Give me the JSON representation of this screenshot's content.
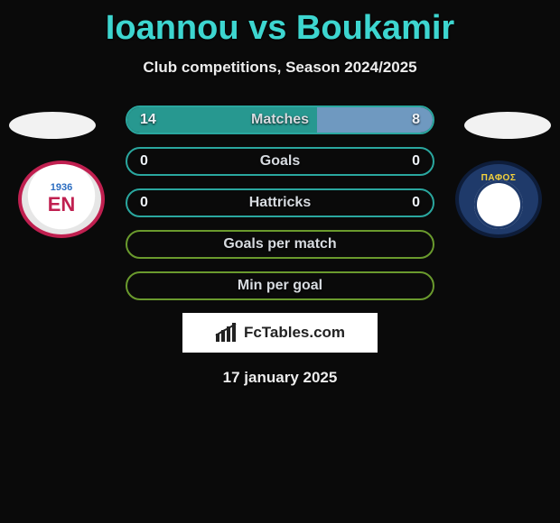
{
  "title": "Ioannou vs Boukamir",
  "subtitle": "Club competitions, Season 2024/2025",
  "date": "17 january 2025",
  "watermark": "FcTables.com",
  "colors": {
    "row_border_teal": "#2aa79f",
    "row_border_green": "#6a9a2d",
    "fill_left": "#2aa79f",
    "fill_right": "#7aa9d4"
  },
  "left_badge": {
    "year": "1936",
    "abbr": "EN"
  },
  "right_badge": {
    "text": "ΠΑΦΟΣ"
  },
  "rows": [
    {
      "label": "Matches",
      "left": "14",
      "right": "8",
      "border": "#2aa79f",
      "fill_left_pct": 62,
      "fill_right_pct": 38,
      "fill_left_color": "#2aa79f",
      "fill_right_color": "#7aa9d4"
    },
    {
      "label": "Goals",
      "left": "0",
      "right": "0",
      "border": "#2aa79f",
      "fill_left_pct": 0,
      "fill_right_pct": 0
    },
    {
      "label": "Hattricks",
      "left": "0",
      "right": "0",
      "border": "#2aa79f",
      "fill_left_pct": 0,
      "fill_right_pct": 0
    },
    {
      "label": "Goals per match",
      "left": "",
      "right": "",
      "border": "#6a9a2d",
      "fill_left_pct": 0,
      "fill_right_pct": 0
    },
    {
      "label": "Min per goal",
      "left": "",
      "right": "",
      "border": "#6a9a2d",
      "fill_left_pct": 0,
      "fill_right_pct": 0
    }
  ]
}
